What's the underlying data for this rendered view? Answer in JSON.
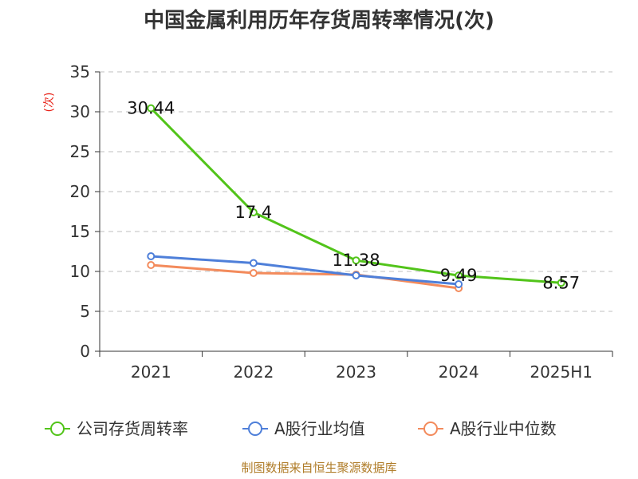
{
  "chart_data": {
    "type": "line",
    "title": "中国金属利用历年存货周转率情况(次)",
    "ylabel": "(次)",
    "xlabel": "",
    "categories": [
      "2021",
      "2022",
      "2023",
      "2024",
      "2025H1"
    ],
    "ylim": [
      0,
      35
    ],
    "yticks": [
      0,
      5,
      10,
      15,
      20,
      25,
      30,
      35
    ],
    "grid": true,
    "legend_position": "bottom",
    "series": [
      {
        "name": "公司存货周转率",
        "color": "#52c41a",
        "values": [
          30.44,
          17.4,
          11.38,
          9.49,
          8.57
        ],
        "labels": [
          "30.44",
          "17.4",
          "11.38",
          "9.49",
          "8.57"
        ]
      },
      {
        "name": "A股行业均值",
        "color": "#4e7fd9",
        "values": [
          11.9,
          11.05,
          9.5,
          8.4,
          null
        ]
      },
      {
        "name": "A股行业中位数",
        "color": "#f38b5c",
        "values": [
          10.8,
          9.8,
          9.6,
          7.9,
          null
        ]
      }
    ],
    "source": "制图数据来自恒生聚源数据库"
  }
}
